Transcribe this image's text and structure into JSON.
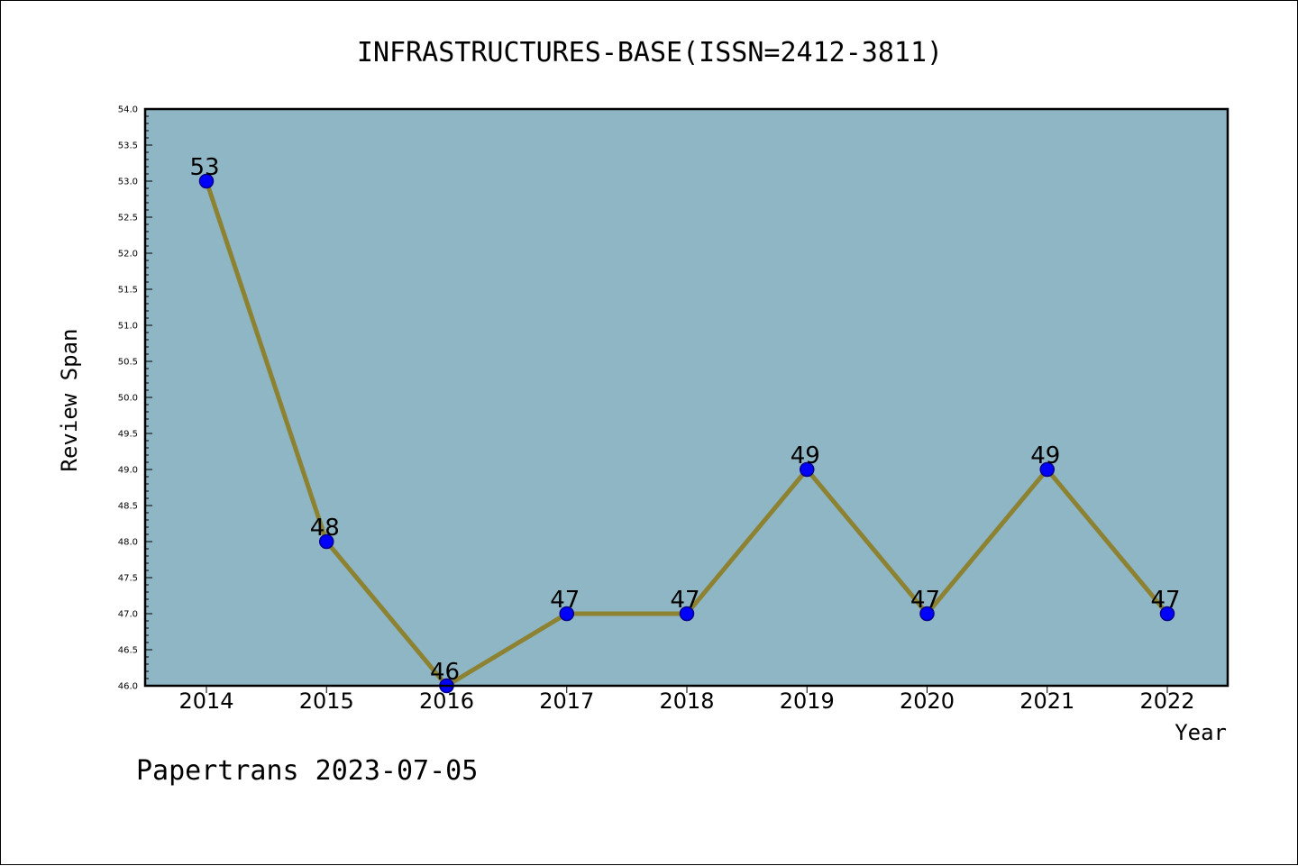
{
  "chart_data": {
    "type": "line",
    "title": "INFRASTRUCTURES-BASE(ISSN=2412-3811)",
    "xlabel": "Year",
    "ylabel": "Review Span",
    "categories": [
      "2014",
      "2015",
      "2016",
      "2017",
      "2018",
      "2019",
      "2020",
      "2021",
      "2022"
    ],
    "values": [
      53,
      48,
      46,
      47,
      47,
      49,
      47,
      49,
      47
    ],
    "ylim": [
      46.0,
      54.0
    ],
    "yticks": [
      "46.0",
      "46.5",
      "47.0",
      "47.5",
      "48.0",
      "48.5",
      "49.0",
      "49.5",
      "50.0",
      "50.5",
      "51.0",
      "51.5",
      "52.0",
      "52.5",
      "53.0",
      "53.5",
      "54.0"
    ],
    "grid": false,
    "colors": {
      "plot_background": "#8fb6c4",
      "line": "#8c8232",
      "marker": "#0000ff",
      "marker_edge": "#00008b"
    }
  },
  "footer": "Papertrans 2023-07-05"
}
